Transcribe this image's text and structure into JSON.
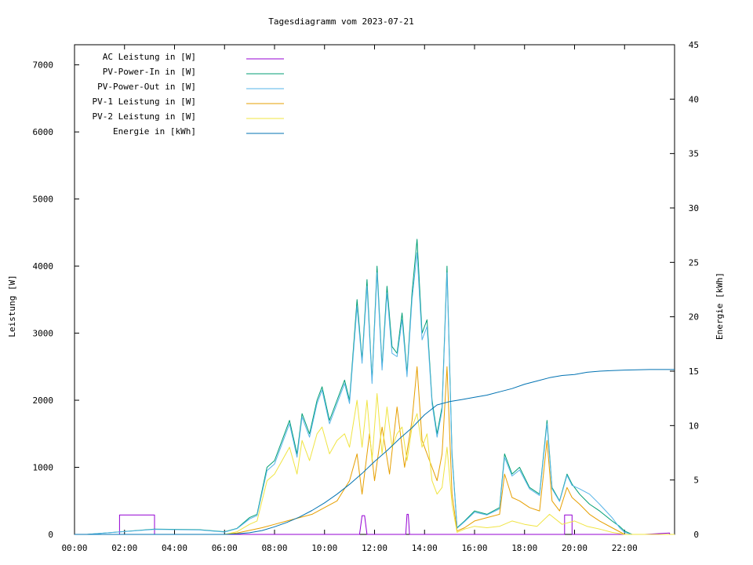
{
  "chart_data": {
    "type": "line",
    "title": "Tagesdiagramm vom 2023-07-21",
    "xlabel": "",
    "ylabel": "Leistung [W]",
    "y2label": "Energie [kWh]",
    "xlim": [
      0,
      24
    ],
    "ylim": [
      0,
      7300
    ],
    "y2lim": [
      0,
      45
    ],
    "x_ticks": [
      {
        "value": 0,
        "label": "00:00"
      },
      {
        "value": 2,
        "label": "02:00"
      },
      {
        "value": 4,
        "label": "04:00"
      },
      {
        "value": 6,
        "label": "06:00"
      },
      {
        "value": 8,
        "label": "08:00"
      },
      {
        "value": 10,
        "label": "10:00"
      },
      {
        "value": 12,
        "label": "12:00"
      },
      {
        "value": 14,
        "label": "14:00"
      },
      {
        "value": 16,
        "label": "16:00"
      },
      {
        "value": 18,
        "label": "18:00"
      },
      {
        "value": 20,
        "label": "20:00"
      },
      {
        "value": 22,
        "label": "22:00"
      }
    ],
    "y_ticks": [
      {
        "value": 0,
        "label": "0"
      },
      {
        "value": 1000,
        "label": "1000"
      },
      {
        "value": 2000,
        "label": "2000"
      },
      {
        "value": 3000,
        "label": "3000"
      },
      {
        "value": 4000,
        "label": "4000"
      },
      {
        "value": 5000,
        "label": "5000"
      },
      {
        "value": 6000,
        "label": "6000"
      },
      {
        "value": 7000,
        "label": "7000"
      }
    ],
    "y2_ticks": [
      {
        "value": 0,
        "label": "0"
      },
      {
        "value": 5,
        "label": "5"
      },
      {
        "value": 10,
        "label": "10"
      },
      {
        "value": 15,
        "label": "15"
      },
      {
        "value": 20,
        "label": "20"
      },
      {
        "value": 25,
        "label": "25"
      },
      {
        "value": 30,
        "label": "30"
      },
      {
        "value": 35,
        "label": "35"
      },
      {
        "value": 40,
        "label": "40"
      },
      {
        "value": 45,
        "label": "45"
      }
    ],
    "legend_position": "top-left",
    "series": [
      {
        "name": "AC Leistung in [W]",
        "color": "#9400d3",
        "axis": "y",
        "x": [
          0,
          1.8,
          1.8,
          3.2,
          3.2,
          11.4,
          11.5,
          11.6,
          11.7,
          13.25,
          13.3,
          13.35,
          13.4,
          19.6,
          19.6,
          19.9,
          19.9,
          22.8,
          23.8,
          23.81,
          24
        ],
        "y": [
          0,
          0,
          290,
          290,
          0,
          0,
          280,
          280,
          0,
          0,
          300,
          300,
          0,
          0,
          290,
          290,
          0,
          0,
          20,
          0,
          0
        ]
      },
      {
        "name": "PV-Power-In in [W]",
        "color": "#009e73",
        "axis": "y",
        "x": [
          0,
          0.5,
          3.2,
          5.0,
          6.0,
          6.5,
          7.0,
          7.3,
          7.7,
          8.0,
          8.3,
          8.6,
          8.9,
          9.1,
          9.4,
          9.7,
          9.9,
          10.2,
          10.5,
          10.8,
          11.0,
          11.3,
          11.5,
          11.7,
          11.9,
          12.1,
          12.3,
          12.5,
          12.7,
          12.9,
          13.1,
          13.3,
          13.5,
          13.7,
          13.9,
          14.1,
          14.3,
          14.5,
          14.7,
          14.9,
          15.1,
          15.3,
          15.6,
          16.0,
          16.5,
          17.0,
          17.2,
          17.5,
          17.8,
          18.2,
          18.6,
          18.9,
          19.1,
          19.4,
          19.7,
          19.9,
          20.2,
          20.6,
          21.0,
          21.5,
          21.8,
          22.0,
          22.3,
          24
        ],
        "y": [
          0,
          0,
          80,
          70,
          40,
          90,
          250,
          300,
          1000,
          1100,
          1400,
          1700,
          1200,
          1800,
          1500,
          2000,
          2200,
          1700,
          2000,
          2300,
          2000,
          3500,
          2600,
          3800,
          2300,
          4000,
          2500,
          3700,
          2800,
          2700,
          3300,
          2400,
          3600,
          4400,
          3000,
          3200,
          2000,
          1500,
          1900,
          4000,
          1200,
          100,
          200,
          350,
          300,
          400,
          1200,
          900,
          1000,
          700,
          600,
          1700,
          700,
          500,
          900,
          750,
          600,
          450,
          350,
          200,
          120,
          50,
          0,
          0
        ]
      },
      {
        "name": "PV-Power-Out in [W]",
        "color": "#56b4e9",
        "axis": "y",
        "x": [
          0,
          0.5,
          3.2,
          5.0,
          6.0,
          6.5,
          7.0,
          7.3,
          7.7,
          8.0,
          8.3,
          8.6,
          8.9,
          9.1,
          9.4,
          9.7,
          9.9,
          10.2,
          10.5,
          10.8,
          11.0,
          11.3,
          11.5,
          11.7,
          11.9,
          12.1,
          12.3,
          12.5,
          12.7,
          12.9,
          13.1,
          13.3,
          13.5,
          13.7,
          13.9,
          14.1,
          14.3,
          14.5,
          14.7,
          14.9,
          15.1,
          15.3,
          15.6,
          16.0,
          16.5,
          17.0,
          17.2,
          17.5,
          17.8,
          18.2,
          18.6,
          18.9,
          19.1,
          19.4,
          19.7,
          19.9,
          20.2,
          20.6,
          21.0,
          21.5,
          21.8,
          22.0,
          22.3,
          24
        ],
        "y": [
          0,
          0,
          75,
          65,
          35,
          85,
          230,
          280,
          950,
          1050,
          1350,
          1650,
          1150,
          1750,
          1450,
          1950,
          2150,
          1650,
          1950,
          2250,
          1950,
          3400,
          2550,
          3700,
          2250,
          3900,
          2450,
          3600,
          2700,
          2650,
          3200,
          2350,
          3500,
          4200,
          2900,
          3100,
          1950,
          1450,
          1850,
          3900,
          1150,
          90,
          190,
          330,
          290,
          380,
          1150,
          870,
          960,
          680,
          580,
          1650,
          680,
          490,
          880,
          730,
          680,
          600,
          450,
          250,
          100,
          30,
          0,
          0
        ]
      },
      {
        "name": "PV-1 Leistung in [W]",
        "color": "#e69f00",
        "axis": "y",
        "x": [
          0,
          6.0,
          6.5,
          7.0,
          7.5,
          8.0,
          8.5,
          9.0,
          9.5,
          10.0,
          10.5,
          11.0,
          11.3,
          11.5,
          11.8,
          12.0,
          12.3,
          12.6,
          12.9,
          13.2,
          13.5,
          13.7,
          13.9,
          14.2,
          14.5,
          14.7,
          14.9,
          15.1,
          15.3,
          15.6,
          16.0,
          16.5,
          17.0,
          17.2,
          17.5,
          17.8,
          18.2,
          18.6,
          18.9,
          19.1,
          19.4,
          19.7,
          19.9,
          20.2,
          20.6,
          21.0,
          21.5,
          22.0,
          24
        ],
        "y": [
          0,
          0,
          20,
          60,
          100,
          150,
          200,
          250,
          300,
          400,
          500,
          800,
          1200,
          600,
          1500,
          800,
          1600,
          900,
          1900,
          1000,
          1700,
          2500,
          1400,
          1100,
          800,
          1200,
          2500,
          600,
          50,
          100,
          200,
          250,
          300,
          900,
          550,
          500,
          400,
          350,
          1400,
          500,
          350,
          700,
          550,
          450,
          300,
          200,
          100,
          0,
          0
        ]
      },
      {
        "name": "PV-2 Leistung in [W]",
        "color": "#f0e442",
        "axis": "y",
        "x": [
          0,
          6.0,
          6.5,
          7.0,
          7.3,
          7.7,
          8.0,
          8.3,
          8.6,
          8.9,
          9.1,
          9.4,
          9.7,
          9.9,
          10.2,
          10.5,
          10.8,
          11.0,
          11.3,
          11.5,
          11.7,
          11.9,
          12.1,
          12.3,
          12.5,
          12.7,
          12.9,
          13.1,
          13.3,
          13.5,
          13.7,
          13.9,
          14.1,
          14.3,
          14.5,
          14.7,
          14.9,
          15.1,
          15.3,
          15.6,
          16.0,
          16.5,
          17.0,
          17.5,
          18.0,
          18.5,
          19.0,
          19.5,
          20.0,
          20.5,
          21.0,
          21.5,
          22.0,
          24
        ],
        "y": [
          0,
          0,
          40,
          150,
          200,
          800,
          900,
          1100,
          1300,
          900,
          1400,
          1100,
          1500,
          1600,
          1200,
          1400,
          1500,
          1300,
          2000,
          1300,
          2000,
          1100,
          2100,
          1200,
          1900,
          1300,
          1500,
          1600,
          1100,
          1600,
          1800,
          1300,
          1500,
          800,
          600,
          700,
          1300,
          450,
          30,
          80,
          120,
          100,
          120,
          200,
          150,
          120,
          300,
          150,
          200,
          120,
          80,
          30,
          0,
          0
        ]
      },
      {
        "name": "Energie in [kWh]",
        "color": "#0072b2",
        "axis": "y2",
        "x": [
          0,
          6.0,
          6.5,
          7.0,
          7.5,
          8.0,
          8.5,
          9.0,
          9.5,
          10.0,
          10.5,
          11.0,
          11.5,
          12.0,
          12.5,
          13.0,
          13.5,
          14.0,
          14.5,
          15.0,
          15.5,
          16.0,
          16.5,
          17.0,
          17.5,
          18.0,
          18.5,
          19.0,
          19.5,
          20.0,
          20.5,
          21.0,
          21.5,
          22.0,
          23.0,
          24
        ],
        "y": [
          0,
          0,
          0.05,
          0.15,
          0.35,
          0.7,
          1.1,
          1.6,
          2.2,
          2.9,
          3.7,
          4.6,
          5.6,
          6.7,
          7.7,
          8.8,
          9.8,
          11.0,
          11.9,
          12.2,
          12.4,
          12.6,
          12.8,
          13.1,
          13.4,
          13.8,
          14.1,
          14.4,
          14.6,
          14.7,
          14.9,
          15.0,
          15.05,
          15.1,
          15.15,
          15.15
        ]
      }
    ]
  }
}
